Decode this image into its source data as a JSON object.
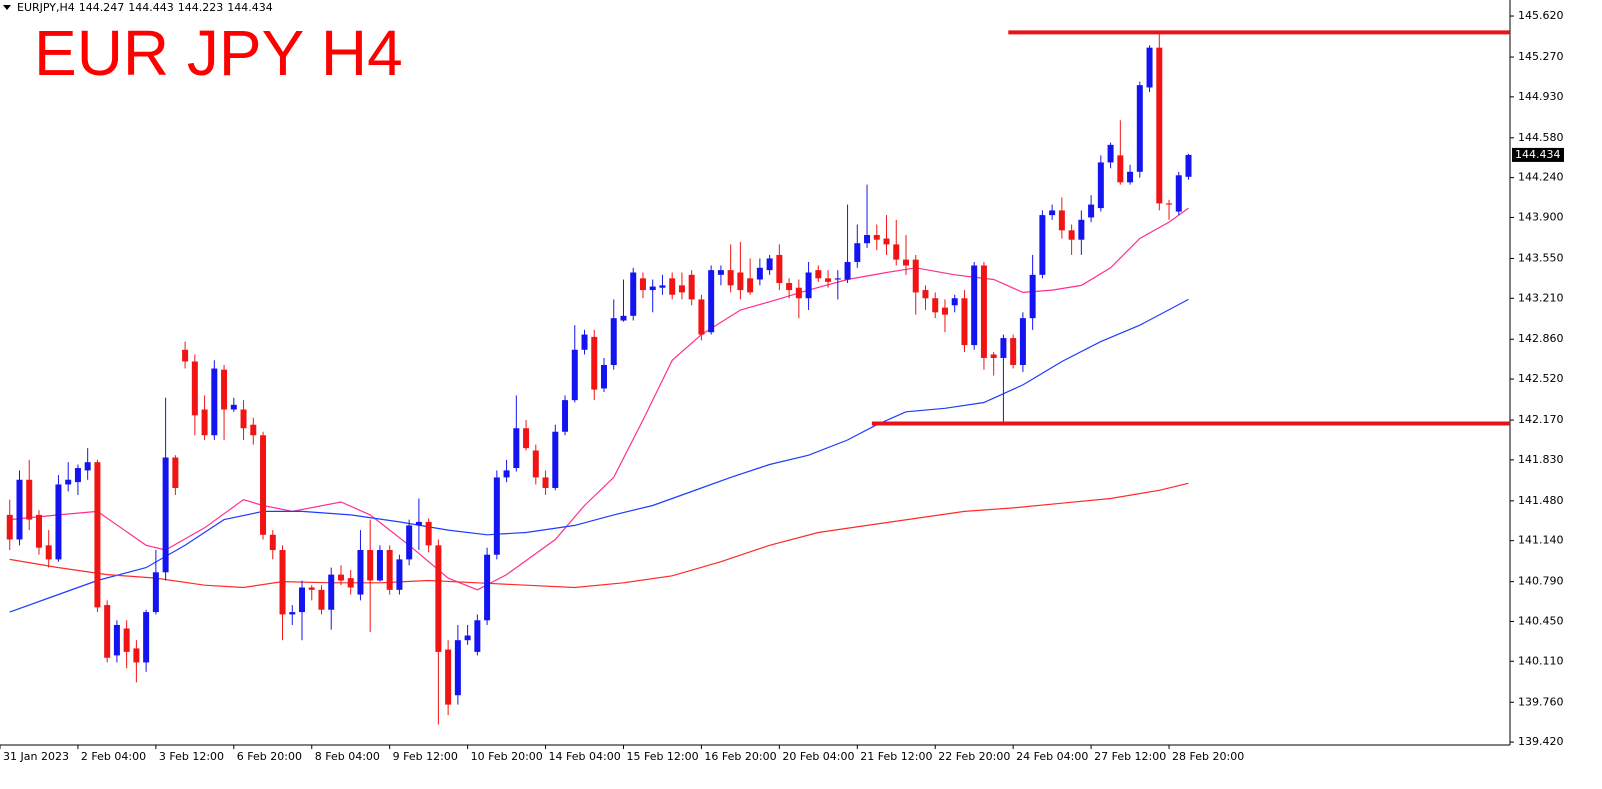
{
  "chart_data": {
    "type": "candlestick",
    "symbol": "EURJPY,H4",
    "title": "EUR JPY H4",
    "up_color": "#1414f0",
    "down_color": "#f01414",
    "xlim": [
      -1,
      154
    ],
    "ylim": [
      139.395,
      145.757
    ],
    "xticks": [
      {
        "value": -1,
        "label": "31 Jan 2023"
      },
      {
        "value": 7,
        "label": "2 Feb 04:00"
      },
      {
        "value": 15,
        "label": "3 Feb 12:00"
      },
      {
        "value": 23,
        "label": "6 Feb 20:00"
      },
      {
        "value": 31,
        "label": "8 Feb 04:00"
      },
      {
        "value": 39,
        "label": "9 Feb 12:00"
      },
      {
        "value": 47,
        "label": "10 Feb 20:00"
      },
      {
        "value": 55,
        "label": "14 Feb 04:00"
      },
      {
        "value": 63,
        "label": "15 Feb 12:00"
      },
      {
        "value": 71,
        "label": "16 Feb 20:00"
      },
      {
        "value": 79,
        "label": "20 Feb 04:00"
      },
      {
        "value": 87,
        "label": "21 Feb 12:00"
      },
      {
        "value": 95,
        "label": "22 Feb 20:00"
      },
      {
        "value": 103,
        "label": "24 Feb 04:00"
      },
      {
        "value": 111,
        "label": "27 Feb 12:00"
      },
      {
        "value": 119,
        "label": "28 Feb 20:00"
      }
    ],
    "yticks": [
      {
        "value": 145.62,
        "label": "145.620"
      },
      {
        "value": 145.27,
        "label": "145.270"
      },
      {
        "value": 144.93,
        "label": "144.930"
      },
      {
        "value": 144.58,
        "label": "144.580"
      },
      {
        "value": 144.24,
        "label": "144.240"
      },
      {
        "value": 143.9,
        "label": "143.900"
      },
      {
        "value": 143.55,
        "label": "143.550"
      },
      {
        "value": 143.21,
        "label": "143.210"
      },
      {
        "value": 142.86,
        "label": "142.860"
      },
      {
        "value": 142.52,
        "label": "142.520"
      },
      {
        "value": 142.17,
        "label": "142.170"
      },
      {
        "value": 141.83,
        "label": "141.830"
      },
      {
        "value": 141.48,
        "label": "141.480"
      },
      {
        "value": 141.14,
        "label": "141.140"
      },
      {
        "value": 140.79,
        "label": "140.790"
      },
      {
        "value": 140.45,
        "label": "140.450"
      },
      {
        "value": 140.11,
        "label": "140.110"
      },
      {
        "value": 139.76,
        "label": "139.760"
      },
      {
        "value": 139.42,
        "label": "139.420"
      }
    ],
    "open": [
      141.36,
      141.15,
      141.66,
      141.36,
      141.1,
      140.98,
      141.62,
      141.64,
      141.74,
      141.81,
      140.59,
      140.16,
      140.39,
      140.22,
      140.1,
      140.53,
      140.87,
      141.85,
      142.77,
      142.67,
      142.26,
      142.04,
      142.6,
      142.26,
      142.26,
      142.13,
      142.04,
      141.19,
      141.06,
      140.51,
      140.53,
      140.74,
      140.72,
      140.55,
      140.85,
      140.82,
      140.68,
      141.06,
      140.8,
      141.06,
      140.72,
      140.98,
      141.27,
      141.3,
      141.1,
      140.21,
      139.82,
      140.29,
      140.19,
      140.46,
      141.02,
      141.68,
      141.76,
      142.1,
      141.91,
      141.68,
      141.59,
      142.07,
      142.34,
      142.77,
      142.88,
      142.44,
      142.64,
      143.02,
      143.06,
      143.38,
      143.28,
      143.3,
      143.38,
      143.32,
      143.41,
      143.2,
      142.92,
      143.41,
      143.45,
      143.43,
      143.38,
      143.37,
      143.45,
      143.58,
      143.34,
      143.3,
      143.21,
      143.45,
      143.38,
      143.37,
      143.37,
      143.52,
      143.68,
      143.75,
      143.72,
      143.67,
      143.54,
      143.54,
      143.28,
      143.21,
      143.13,
      143.15,
      143.21,
      142.81,
      143.49,
      142.73,
      142.7,
      142.87,
      142.64,
      143.04,
      143.41,
      143.92,
      143.96,
      143.79,
      143.71,
      143.9,
      143.98,
      144.37,
      144.43,
      144.2,
      144.29,
      145.01,
      145.35,
      144.02,
      143.95,
      144.247
    ],
    "high": [
      141.49,
      141.74,
      141.83,
      141.4,
      141.23,
      141.7,
      141.81,
      141.79,
      141.93,
      141.83,
      140.63,
      140.46,
      140.46,
      140.29,
      140.55,
      141.06,
      142.36,
      141.87,
      142.84,
      142.73,
      142.38,
      142.68,
      142.64,
      142.36,
      142.34,
      142.19,
      142.07,
      141.23,
      141.1,
      140.59,
      140.8,
      140.76,
      140.76,
      140.91,
      140.93,
      140.89,
      141.23,
      141.32,
      141.1,
      141.1,
      141.02,
      141.32,
      141.5,
      141.33,
      141.15,
      140.29,
      140.42,
      140.42,
      140.51,
      141.08,
      141.74,
      141.83,
      142.38,
      142.17,
      141.96,
      141.74,
      142.13,
      142.38,
      142.98,
      142.94,
      142.94,
      142.7,
      143.2,
      143.37,
      143.47,
      143.43,
      143.37,
      143.41,
      143.43,
      143.43,
      143.45,
      143.24,
      143.49,
      143.49,
      143.67,
      143.69,
      143.55,
      143.55,
      143.58,
      143.67,
      143.38,
      143.37,
      143.52,
      143.49,
      143.45,
      143.45,
      144.01,
      143.84,
      144.18,
      143.84,
      143.92,
      143.88,
      143.75,
      143.58,
      143.32,
      143.26,
      143.2,
      143.24,
      143.28,
      143.52,
      143.52,
      142.75,
      142.9,
      142.9,
      143.09,
      143.58,
      143.96,
      144.01,
      144.07,
      143.84,
      143.96,
      144.09,
      144.43,
      144.54,
      144.73,
      144.35,
      145.06,
      145.37,
      145.48,
      144.05,
      144.29,
      144.443
    ],
    "low": [
      141.06,
      141.1,
      141.23,
      141.02,
      140.91,
      140.96,
      141.56,
      141.53,
      141.66,
      140.53,
      140.1,
      140.1,
      140.05,
      139.93,
      140.02,
      140.51,
      140.8,
      141.53,
      142.61,
      142.04,
      142.0,
      142.0,
      142.0,
      142.24,
      142.0,
      141.96,
      141.15,
      140.98,
      140.29,
      140.42,
      140.29,
      140.63,
      140.51,
      140.38,
      140.76,
      140.68,
      140.63,
      140.36,
      140.79,
      140.68,
      140.68,
      140.93,
      141.06,
      141.04,
      139.57,
      139.65,
      139.74,
      140.25,
      140.16,
      140.42,
      140.98,
      141.64,
      141.73,
      141.91,
      141.62,
      141.53,
      141.57,
      142.04,
      142.32,
      142.73,
      142.34,
      142.41,
      142.6,
      143.01,
      143.02,
      143.21,
      143.09,
      143.24,
      143.2,
      143.2,
      143.15,
      142.85,
      142.9,
      143.32,
      143.26,
      143.2,
      143.24,
      143.32,
      143.41,
      143.28,
      143.21,
      143.04,
      143.11,
      143.35,
      143.3,
      143.2,
      143.34,
      143.47,
      143.64,
      143.62,
      143.58,
      143.49,
      143.41,
      143.07,
      143.11,
      143.04,
      142.92,
      143.09,
      142.75,
      142.77,
      142.6,
      142.55,
      142.15,
      142.61,
      142.58,
      142.94,
      143.38,
      143.88,
      143.72,
      143.58,
      143.58,
      143.86,
      143.95,
      144.32,
      144.18,
      144.18,
      144.24,
      144.97,
      143.96,
      143.88,
      143.92,
      144.223
    ],
    "close": [
      141.15,
      141.66,
      141.32,
      141.08,
      140.98,
      141.62,
      141.66,
      141.76,
      141.81,
      140.57,
      140.14,
      140.42,
      140.19,
      140.1,
      140.53,
      140.87,
      141.85,
      141.59,
      142.67,
      142.21,
      142.04,
      142.61,
      142.26,
      142.3,
      142.1,
      142.04,
      141.19,
      141.06,
      140.51,
      140.53,
      140.74,
      140.72,
      140.55,
      140.85,
      140.8,
      140.74,
      141.06,
      140.8,
      141.06,
      140.72,
      140.98,
      141.27,
      141.3,
      141.1,
      140.19,
      139.74,
      140.29,
      140.33,
      140.46,
      141.02,
      141.68,
      141.74,
      142.1,
      141.93,
      141.68,
      141.59,
      142.07,
      142.34,
      142.77,
      142.9,
      142.43,
      142.64,
      143.04,
      143.06,
      143.43,
      143.28,
      143.31,
      143.32,
      143.24,
      143.26,
      143.2,
      142.9,
      143.45,
      143.45,
      143.32,
      143.28,
      143.26,
      143.47,
      143.55,
      143.34,
      143.28,
      143.21,
      143.43,
      143.38,
      143.35,
      143.38,
      143.52,
      143.68,
      143.75,
      143.71,
      143.67,
      143.54,
      143.49,
      143.26,
      143.21,
      143.09,
      143.07,
      143.21,
      142.81,
      143.49,
      142.7,
      142.7,
      142.87,
      142.64,
      143.04,
      143.41,
      143.92,
      143.96,
      143.79,
      143.71,
      143.88,
      144.01,
      144.37,
      144.52,
      144.2,
      144.29,
      145.03,
      145.35,
      144.02,
      144.01,
      144.26,
      144.434
    ],
    "moving_averages": [
      {
        "color": "#ff2f8e",
        "x": [
          0,
          5,
          9,
          14,
          16,
          20,
          24,
          26,
          29,
          34,
          37,
          41,
          45,
          48,
          51,
          56,
          59,
          62,
          65,
          68,
          71,
          75,
          78,
          82,
          86,
          90,
          93,
          97,
          101,
          104,
          107,
          110,
          113,
          116,
          119,
          121
        ],
        "values": [
          141.32,
          141.36,
          141.39,
          141.1,
          141.06,
          141.25,
          141.49,
          141.44,
          141.39,
          141.47,
          141.36,
          141.1,
          140.82,
          140.72,
          140.85,
          141.15,
          141.44,
          141.68,
          142.17,
          142.68,
          142.9,
          143.11,
          143.18,
          143.28,
          143.37,
          143.43,
          143.47,
          143.41,
          143.37,
          143.26,
          143.28,
          143.32,
          143.47,
          143.72,
          143.86,
          143.98
        ]
      },
      {
        "color": "#1e3cff",
        "x": [
          0,
          5,
          9,
          14,
          18,
          22,
          26,
          30,
          35,
          40,
          45,
          49,
          53,
          58,
          62,
          66,
          70,
          74,
          78,
          82,
          86,
          89,
          92,
          96,
          100,
          104,
          108,
          112,
          116,
          121
        ],
        "values": [
          140.53,
          140.68,
          140.8,
          140.91,
          141.1,
          141.32,
          141.39,
          141.39,
          141.36,
          141.3,
          141.23,
          141.19,
          141.21,
          141.27,
          141.36,
          141.44,
          141.56,
          141.68,
          141.79,
          141.87,
          142.0,
          142.13,
          142.24,
          142.27,
          142.32,
          142.47,
          142.67,
          142.84,
          142.98,
          143.2
        ]
      },
      {
        "color": "#ff2a2a",
        "x": [
          0,
          5,
          10,
          15,
          20,
          24,
          28,
          33,
          38,
          43,
          48,
          53,
          58,
          63,
          68,
          73,
          78,
          83,
          88,
          93,
          98,
          103,
          108,
          113,
          118,
          121
        ],
        "values": [
          140.98,
          140.91,
          140.85,
          140.82,
          140.76,
          140.74,
          140.79,
          140.78,
          140.78,
          140.8,
          140.78,
          140.76,
          140.74,
          140.78,
          140.84,
          140.96,
          141.1,
          141.21,
          141.27,
          141.33,
          141.39,
          141.42,
          141.46,
          141.5,
          141.57,
          141.63
        ]
      }
    ],
    "levels": [
      {
        "value": 145.48,
        "from": 102.5,
        "color": "#e8121a"
      },
      {
        "value": 142.14,
        "from": 88.5,
        "color": "#e8121a"
      }
    ]
  }
}
